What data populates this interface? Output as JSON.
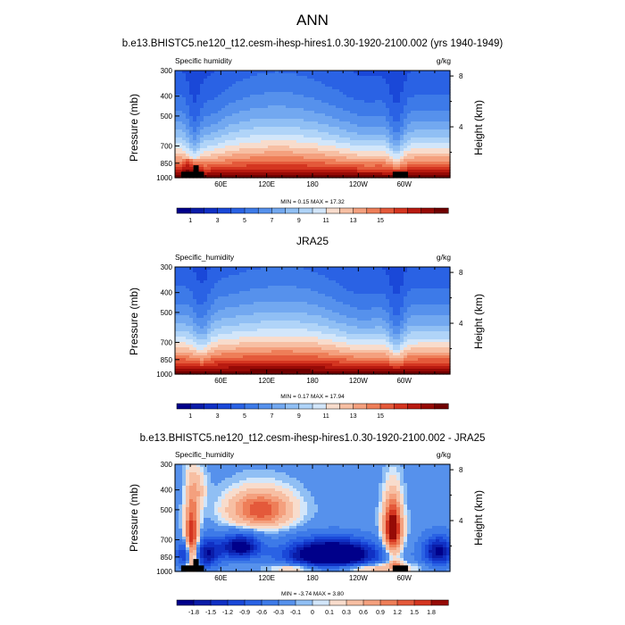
{
  "figure": {
    "title": "ANN"
  },
  "chart_data": [
    {
      "type": "heatmap",
      "title": "b.e13.BHISTC5.ne120_t12.cesm-ihesp-hires1.0.30-1920-2100.002 (yrs 1940-1949)",
      "left_label": "Specific humidity",
      "units": "g/kg",
      "ylabel": "Pressure (mb)",
      "ylabel_right": "Height (km)",
      "pressure_ticks": [
        "300",
        "400",
        "500",
        "700",
        "850",
        "1000"
      ],
      "height_ticks": [
        "8",
        "4"
      ],
      "lon_ticks": [
        "60E",
        "120E",
        "180",
        "120W",
        "60W"
      ],
      "stats": "MIN =   0.15  MAX =  17.32",
      "min": 0.15,
      "max": 17.32,
      "colorbar_labels": [
        "1",
        "3",
        "5",
        "7",
        "9",
        "11",
        "13",
        "15"
      ],
      "field": "humidity_model"
    },
    {
      "type": "heatmap",
      "title": "JRA25",
      "left_label": "Specific_humidity",
      "units": "g/kg",
      "ylabel": "Pressure (mb)",
      "ylabel_right": "Height (km)",
      "pressure_ticks": [
        "300",
        "400",
        "500",
        "700",
        "850",
        "1000"
      ],
      "height_ticks": [
        "8",
        "4"
      ],
      "lon_ticks": [
        "60E",
        "120E",
        "180",
        "120W",
        "60W"
      ],
      "stats": "MIN =   0.17  MAX =  17.94",
      "min": 0.17,
      "max": 17.94,
      "colorbar_labels": [
        "1",
        "3",
        "5",
        "7",
        "9",
        "11",
        "13",
        "15"
      ],
      "field": "humidity_obs"
    },
    {
      "type": "heatmap",
      "title": "b.e13.BHISTC5.ne120_t12.cesm-ihesp-hires1.0.30-1920-2100.002 - JRA25",
      "left_label": "Specific_humidity",
      "units": "g/kg",
      "ylabel": "Pressure (mb)",
      "ylabel_right": "Height (km)",
      "pressure_ticks": [
        "300",
        "400",
        "500",
        "700",
        "850",
        "1000"
      ],
      "height_ticks": [
        "8",
        "4"
      ],
      "lon_ticks": [
        "60E",
        "120E",
        "180",
        "120W",
        "60W"
      ],
      "stats": "MIN =  -3.74  MAX =   3.80",
      "min": -3.74,
      "max": 3.8,
      "colorbar_labels": [
        "-1.8",
        "-1.5",
        "-1.2",
        "-0.9",
        "-0.6",
        "-0.3",
        "-0.1",
        "0",
        "0.1",
        "0.3",
        "0.6",
        "0.9",
        "1.2",
        "1.5",
        "1.8"
      ],
      "field": "difference"
    }
  ],
  "colors": {
    "humidity": [
      "#00008a",
      "#0a1ca8",
      "#1030c4",
      "#1a48d8",
      "#2a62e4",
      "#3d7ae8",
      "#5691ec",
      "#72a8f0",
      "#90bff4",
      "#b0d4f8",
      "#d2e6fa",
      "#f8dccc",
      "#f7bfa3",
      "#f4a07e",
      "#ee7e58",
      "#e4593a",
      "#d43520",
      "#b81a10",
      "#960a06",
      "#700000"
    ],
    "difference": [
      "#00008a",
      "#0a1ca8",
      "#1030c4",
      "#1a48d8",
      "#2a62e4",
      "#3d7ae8",
      "#5691ec",
      "#90bff4",
      "#d2e6fa",
      "#f8dccc",
      "#f7bfa3",
      "#f4a07e",
      "#ee7e58",
      "#e4593a",
      "#d43520",
      "#960a06"
    ]
  }
}
